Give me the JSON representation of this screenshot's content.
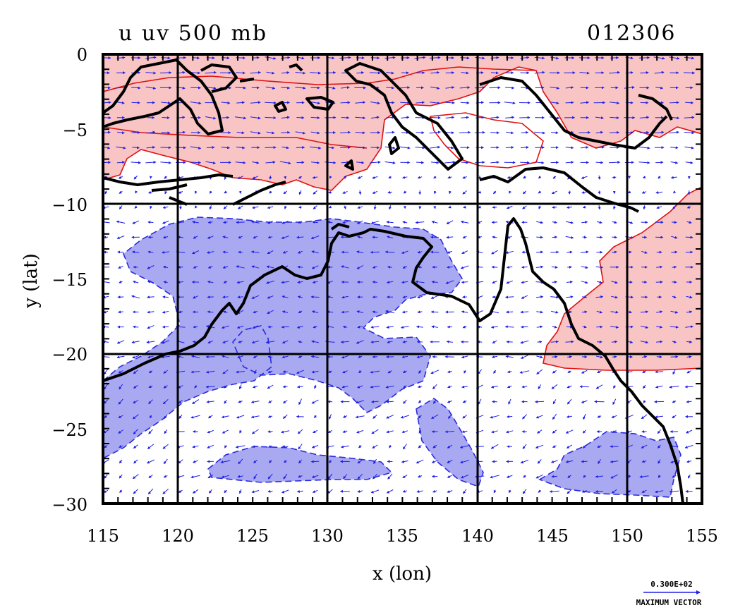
{
  "map": {
    "title_left": "u uv 500 mb",
    "title_right": "012306",
    "xlabel": "x (lon)",
    "ylabel": "y (lat)",
    "x_range": [
      115,
      155
    ],
    "y_range": [
      -30,
      0
    ],
    "x_ticks": [
      "115",
      "120",
      "125",
      "130",
      "135",
      "140",
      "145",
      "150",
      "155"
    ],
    "y_ticks": [
      "0",
      "−5",
      "−10",
      "−15",
      "−20",
      "−25",
      "−30"
    ],
    "grid_lines_lon": [
      120,
      130,
      140,
      150
    ],
    "grid_lines_lat": [
      -10,
      -20
    ],
    "vector_key": {
      "magnitude": "0.300E+02",
      "label": "MAXIMUM VECTOR"
    },
    "colors": {
      "positive_fill": "#f9c4c4",
      "positive_contour": "#e01010",
      "negative_fill": "#a9a9f2",
      "negative_contour": "#2a2ae0",
      "vector": "#1f1fe8",
      "coastline": "#000000",
      "background": "#ffffff"
    }
  }
}
